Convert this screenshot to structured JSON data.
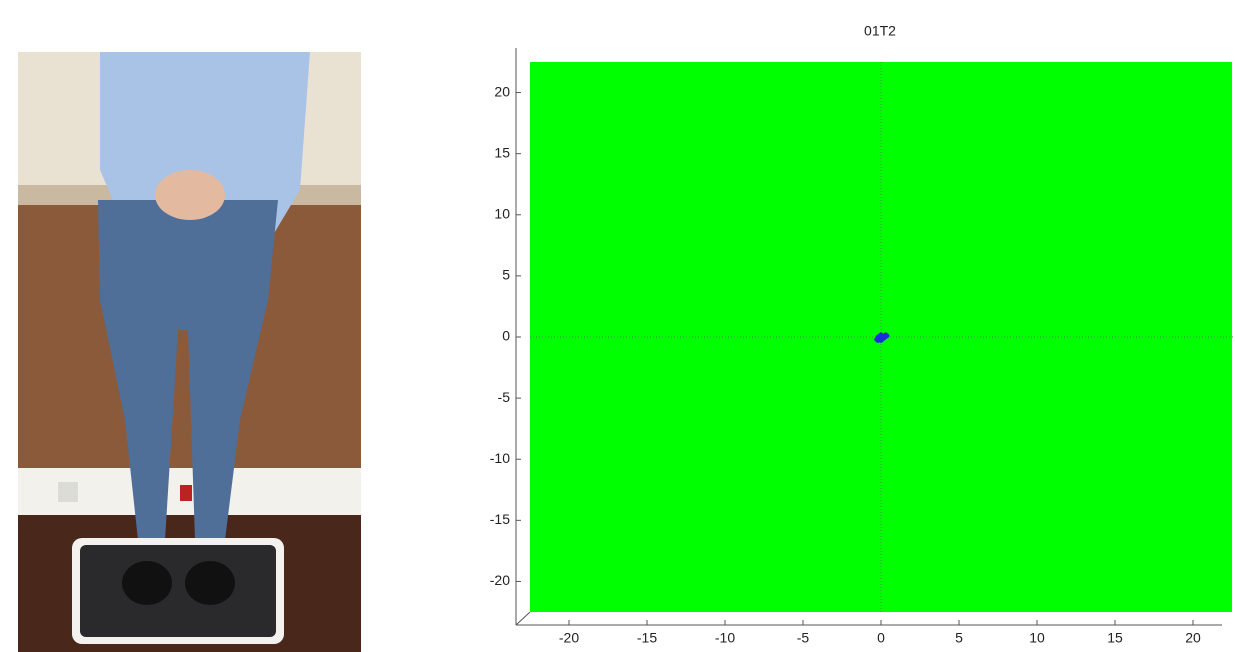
{
  "chart_data": {
    "type": "scatter",
    "title": "01T2",
    "xlim": [
      -22.5,
      22.5
    ],
    "ylim": [
      -22.5,
      22.5
    ],
    "xticks": [
      -20,
      -15,
      -10,
      -5,
      0,
      5,
      10,
      15,
      20
    ],
    "yticks": [
      -20,
      -15,
      -10,
      -5,
      0,
      5,
      10,
      15,
      20
    ],
    "background": "#00ff00",
    "series": [
      {
        "color": "#1a2ed8",
        "x": [
          -0.3,
          -0.2,
          -0.1,
          0.0,
          0.1,
          0.2,
          0.3,
          0.4,
          -0.2,
          0.0,
          0.1,
          0.2,
          -0.1,
          0.3,
          0.0
        ],
        "values": [
          -0.2,
          0.0,
          0.1,
          -0.1,
          0.0,
          0.1,
          0.2,
          0.1,
          -0.3,
          0.2,
          -0.2,
          -0.1,
          -0.1,
          0.0,
          -0.3
        ]
      }
    ]
  }
}
